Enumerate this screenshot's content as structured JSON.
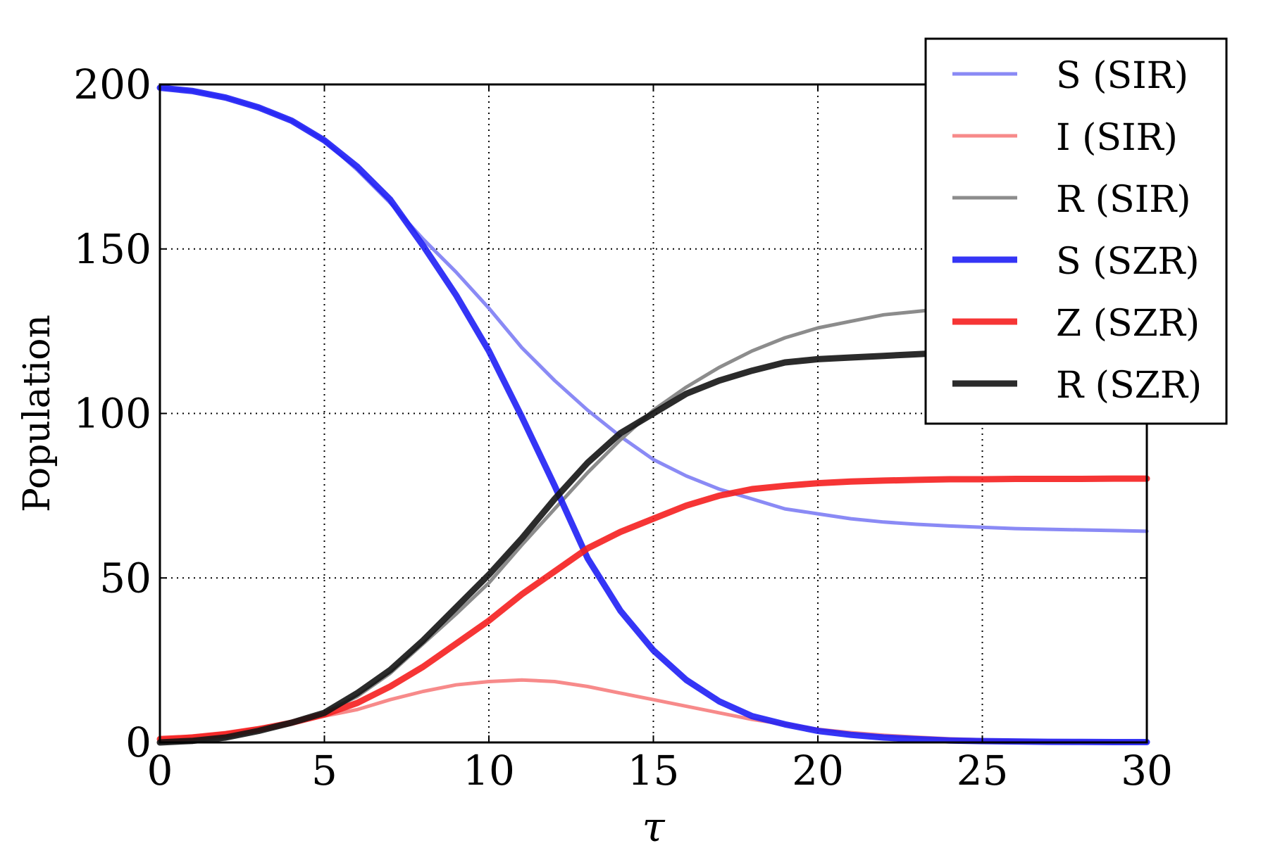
{
  "chart_data": {
    "type": "line",
    "xlabel": "τ",
    "ylabel": "Population",
    "xlim": [
      0,
      30
    ],
    "ylim": [
      0,
      200
    ],
    "xticks": [
      "0",
      "5",
      "10",
      "15",
      "20",
      "25",
      "30"
    ],
    "yticks": [
      "0",
      "50",
      "100",
      "150",
      "200"
    ],
    "grid": true,
    "legend_position": "top-right",
    "x": [
      0,
      1,
      2,
      3,
      4,
      5,
      6,
      7,
      8,
      9,
      10,
      11,
      12,
      13,
      14,
      15,
      16,
      17,
      18,
      19,
      20,
      21,
      22,
      23,
      24,
      25,
      26,
      27,
      28,
      29,
      30
    ],
    "series": [
      {
        "name": "S (SIR)",
        "color": "#8a8af5",
        "values": [
          199,
          198,
          196,
          193,
          189,
          183,
          174,
          164,
          153,
          143,
          132,
          120,
          110,
          101,
          93,
          86,
          81,
          77,
          74,
          71,
          69.5,
          68,
          67,
          66.3,
          65.8,
          65.4,
          65,
          64.8,
          64.6,
          64.4,
          64.2
        ]
      },
      {
        "name": "I (SIR)",
        "color": "#f78a8a",
        "values": [
          1,
          2,
          3,
          4.5,
          6,
          8,
          10,
          13,
          15.5,
          17.5,
          18.5,
          19,
          18.5,
          17,
          15,
          13,
          11,
          9,
          7,
          5.5,
          4,
          3,
          2.2,
          1.6,
          1.1,
          0.8,
          0.6,
          0.4,
          0.3,
          0.2,
          0.15
        ]
      },
      {
        "name": "R (SIR)",
        "color": "#8c8c8c",
        "values": [
          0,
          0.5,
          1.5,
          3.5,
          6,
          9,
          14,
          21,
          30,
          39,
          48.5,
          60,
          71,
          82,
          92,
          101,
          108,
          114,
          119,
          123,
          126,
          128,
          130,
          131,
          132,
          133,
          133.5,
          134,
          134.3,
          134.6,
          134.8
        ]
      },
      {
        "name": "S (SZR)",
        "color": "#1f1ff5",
        "values": [
          199,
          198,
          196,
          193,
          189,
          183,
          175,
          165,
          151,
          136,
          119,
          99,
          78,
          56,
          40,
          28,
          19,
          12.5,
          8,
          5.5,
          3.5,
          2.3,
          1.5,
          1,
          0.6,
          0.4,
          0.3,
          0.2,
          0.15,
          0.1,
          0.1
        ]
      },
      {
        "name": "Z (SZR)",
        "color": "#f51f1f",
        "values": [
          1,
          1.5,
          2.5,
          4,
          6,
          8.5,
          12,
          17,
          23,
          30,
          37,
          45,
          52,
          59,
          64,
          68,
          72,
          75,
          77,
          78,
          78.8,
          79.3,
          79.6,
          79.8,
          80,
          80,
          80.1,
          80.1,
          80.1,
          80.2,
          80.2
        ]
      },
      {
        "name": "R (SZR)",
        "color": "#141414",
        "values": [
          0,
          0.5,
          1.5,
          3.5,
          6,
          9,
          15,
          22,
          31,
          41,
          51,
          62,
          74,
          85,
          94,
          100,
          106,
          110,
          113,
          115.5,
          116.5,
          117,
          117.5,
          118,
          118.5,
          118.8,
          119,
          119.1,
          119.2,
          119.3,
          119.4
        ]
      }
    ]
  }
}
